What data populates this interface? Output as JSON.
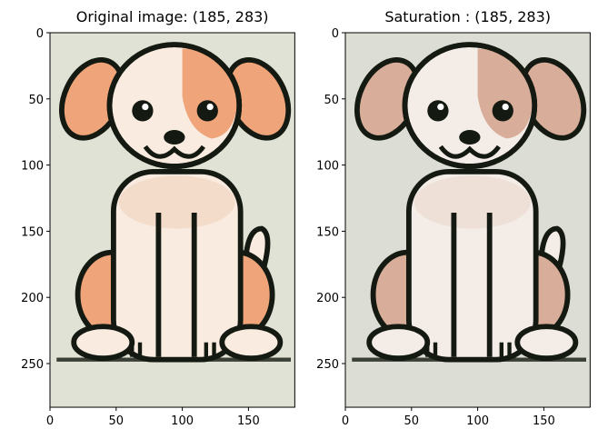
{
  "chart_data": [
    {
      "type": "image",
      "title": "Original image: (185, 283)",
      "xlim": [
        0,
        185
      ],
      "ylim": [
        283,
        0
      ],
      "xticks": [
        0,
        50,
        100,
        150
      ],
      "yticks": [
        0,
        50,
        100,
        150,
        200,
        250
      ]
    },
    {
      "type": "image",
      "title": "Saturation : (185, 283)",
      "xlim": [
        0,
        185
      ],
      "ylim": [
        283,
        0
      ],
      "xticks": [
        0,
        50,
        100,
        150
      ],
      "yticks": [
        0,
        50,
        100,
        150,
        200,
        250
      ]
    }
  ]
}
